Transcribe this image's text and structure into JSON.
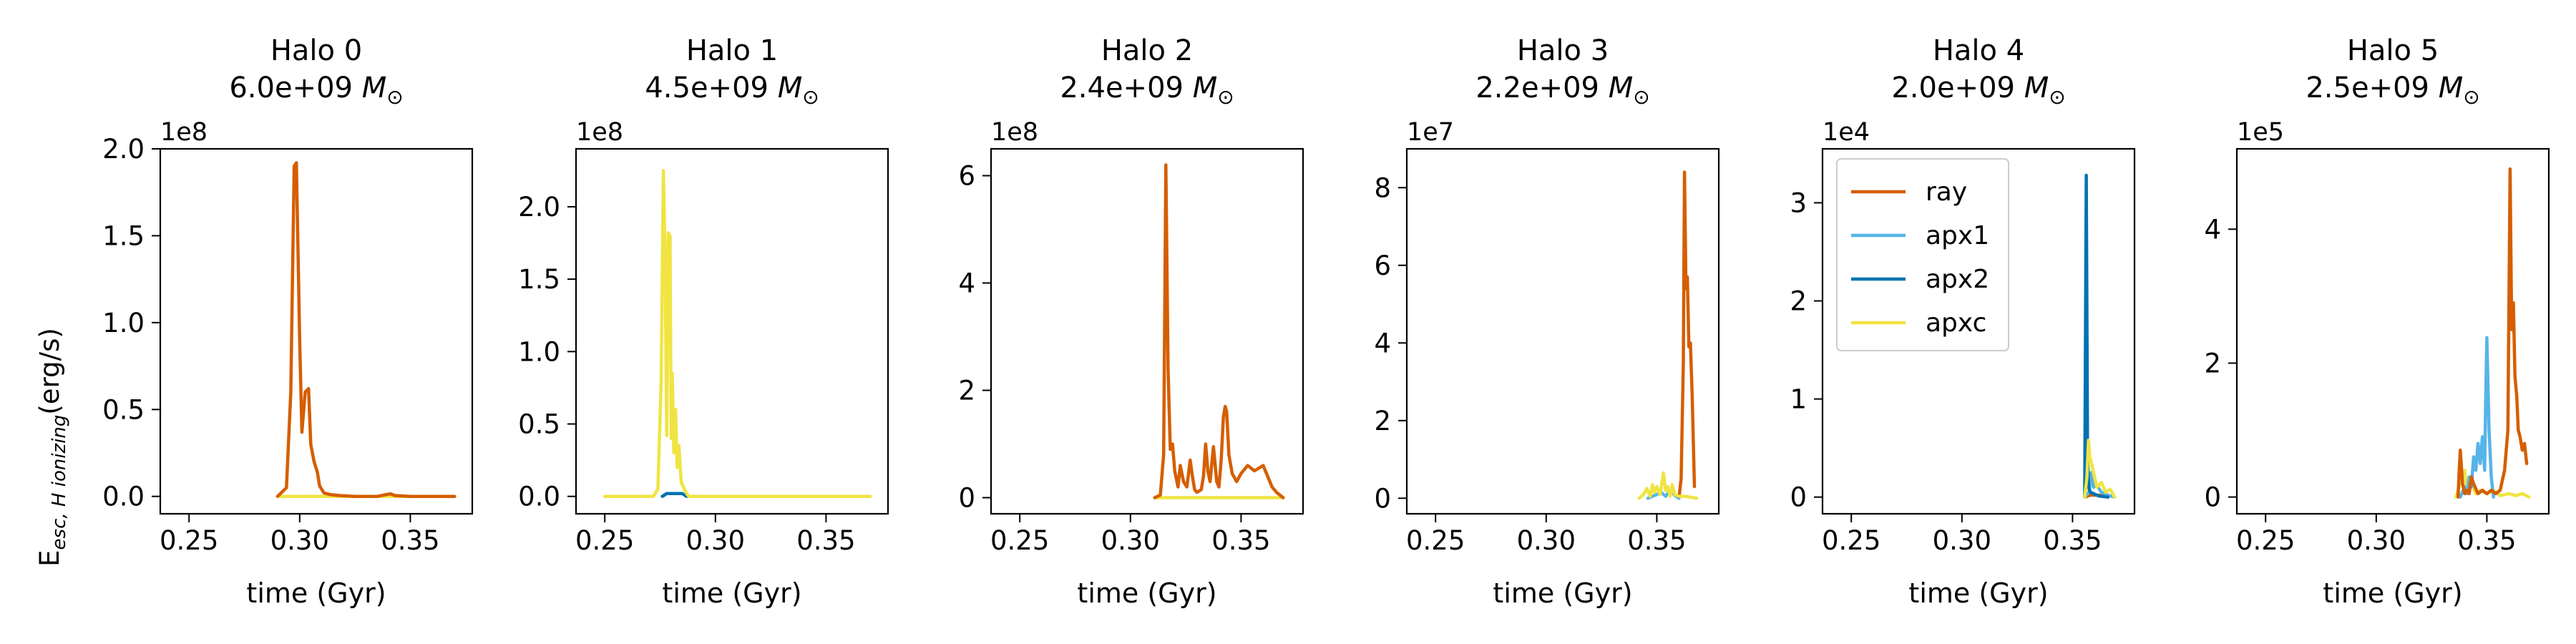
{
  "figure": {
    "ylabel_main": "E",
    "ylabel_sub": "esc, H ionizing",
    "ylabel_unit": "(erg/s)"
  },
  "colors": {
    "ray": "#d55e00",
    "apx1": "#56b4e9",
    "apx2": "#0072b2",
    "apxc": "#f0e442"
  },
  "legend": {
    "entries": [
      {
        "name": "ray",
        "color": "#d55e00"
      },
      {
        "name": "apx1",
        "color": "#56b4e9"
      },
      {
        "name": "apx2",
        "color": "#0072b2"
      },
      {
        "name": "apxc",
        "color": "#f0e442"
      }
    ],
    "placement": "upper-left of Halo 4 panel"
  },
  "chart_data": [
    {
      "type": "line",
      "title_line1": "Halo 0",
      "mass": "6.0e+09",
      "mass_unit": "M",
      "xlabel": "time (Gyr)",
      "xlim": [
        0.237,
        0.378
      ],
      "xticks": [
        0.25,
        0.3,
        0.35
      ],
      "xtick_labels": [
        "0.25",
        "0.30",
        "0.35"
      ],
      "ylim": [
        -0.1,
        2.0
      ],
      "yticks": [
        0.0,
        0.5,
        1.0,
        1.5,
        2.0
      ],
      "ytick_labels": [
        "0.0",
        "0.5",
        "1.0",
        "1.5",
        "2.0"
      ],
      "yscale_label": "1e8",
      "series": [
        {
          "name": "apxc",
          "x": [
            0.29,
            0.37
          ],
          "y": [
            0,
            0
          ]
        },
        {
          "name": "ray",
          "x": [
            0.29,
            0.294,
            0.296,
            0.2975,
            0.2985,
            0.3,
            0.301,
            0.3025,
            0.304,
            0.305,
            0.3065,
            0.308,
            0.309,
            0.311,
            0.314,
            0.318,
            0.325,
            0.335,
            0.341,
            0.343,
            0.35,
            0.36,
            0.37
          ],
          "y": [
            0,
            0.05,
            0.6,
            1.9,
            1.92,
            0.9,
            0.37,
            0.6,
            0.62,
            0.3,
            0.2,
            0.14,
            0.06,
            0.02,
            0.01,
            0.005,
            0,
            0,
            0.015,
            0.005,
            0,
            0,
            0
          ]
        }
      ]
    },
    {
      "type": "line",
      "title_line1": "Halo 1",
      "mass": "4.5e+09",
      "mass_unit": "M",
      "xlabel": "time (Gyr)",
      "xlim": [
        0.237,
        0.378
      ],
      "xticks": [
        0.25,
        0.3,
        0.35
      ],
      "xtick_labels": [
        "0.25",
        "0.30",
        "0.35"
      ],
      "ylim": [
        -0.12,
        2.4
      ],
      "yticks": [
        0.0,
        0.5,
        1.0,
        1.5,
        2.0
      ],
      "ytick_labels": [
        "0.0",
        "0.5",
        "1.0",
        "1.5",
        "2.0"
      ],
      "yscale_label": "1e8",
      "series": [
        {
          "name": "apx2",
          "x": [
            0.276,
            0.278,
            0.282,
            0.285,
            0.287
          ],
          "y": [
            0,
            0.02,
            0.02,
            0.02,
            0
          ]
        },
        {
          "name": "apxc",
          "x": [
            0.25,
            0.272,
            0.274,
            0.2755,
            0.2765,
            0.2772,
            0.278,
            0.2787,
            0.2795,
            0.28,
            0.2805,
            0.2812,
            0.282,
            0.2827,
            0.2835,
            0.2845,
            0.286,
            0.287,
            0.288,
            0.29,
            0.3,
            0.37
          ],
          "y": [
            0,
            0,
            0.05,
            0.8,
            2.25,
            1.7,
            0.42,
            1.82,
            1.8,
            0.4,
            0.85,
            0.3,
            0.6,
            0.2,
            0.35,
            0.1,
            0.05,
            0.02,
            0,
            0,
            0,
            0
          ]
        }
      ]
    },
    {
      "type": "line",
      "title_line1": "Halo 2",
      "mass": "2.4e+09",
      "mass_unit": "M",
      "xlabel": "time (Gyr)",
      "xlim": [
        0.237,
        0.378
      ],
      "xticks": [
        0.25,
        0.3,
        0.35
      ],
      "xtick_labels": [
        "0.25",
        "0.30",
        "0.35"
      ],
      "ylim": [
        -0.3,
        6.5
      ],
      "yticks": [
        0,
        2,
        4,
        6
      ],
      "ytick_labels": [
        "0",
        "2",
        "4",
        "6"
      ],
      "yscale_label": "1e8",
      "series": [
        {
          "name": "apxc",
          "x": [
            0.311,
            0.369
          ],
          "y": [
            0,
            0
          ]
        },
        {
          "name": "ray",
          "x": [
            0.311,
            0.3135,
            0.315,
            0.316,
            0.317,
            0.318,
            0.319,
            0.32,
            0.3215,
            0.3225,
            0.324,
            0.3255,
            0.327,
            0.328,
            0.329,
            0.33,
            0.332,
            0.333,
            0.334,
            0.335,
            0.336,
            0.3375,
            0.339,
            0.34,
            0.341,
            0.342,
            0.3428,
            0.3435,
            0.3445,
            0.346,
            0.348,
            0.35,
            0.353,
            0.356,
            0.36,
            0.362,
            0.364,
            0.366,
            0.369
          ],
          "y": [
            0,
            0.05,
            0.8,
            6.2,
            2.4,
            0.9,
            1.0,
            0.5,
            0.2,
            0.6,
            0.3,
            0.2,
            0.7,
            0.4,
            0.15,
            0.1,
            0.15,
            0.4,
            1.0,
            0.5,
            0.3,
            0.95,
            0.3,
            0.2,
            0.7,
            1.5,
            1.7,
            1.6,
            0.8,
            0.45,
            0.3,
            0.45,
            0.6,
            0.5,
            0.6,
            0.4,
            0.2,
            0.1,
            0
          ]
        }
      ]
    },
    {
      "type": "line",
      "title_line1": "Halo 3",
      "mass": "2.2e+09",
      "mass_unit": "M",
      "xlabel": "time (Gyr)",
      "xlim": [
        0.237,
        0.378
      ],
      "xticks": [
        0.25,
        0.3,
        0.35
      ],
      "xtick_labels": [
        "0.25",
        "0.30",
        "0.35"
      ],
      "ylim": [
        -0.4,
        9.0
      ],
      "yticks": [
        0,
        2,
        4,
        6,
        8
      ],
      "ytick_labels": [
        "0",
        "2",
        "4",
        "6",
        "8"
      ],
      "yscale_label": "1e7",
      "series": [
        {
          "name": "ray",
          "x": [
            0.36,
            0.361,
            0.362,
            0.3625,
            0.3632,
            0.3638,
            0.3645,
            0.3652,
            0.366,
            0.367
          ],
          "y": [
            0,
            0.5,
            3.5,
            8.4,
            5.4,
            5.7,
            3.9,
            4.0,
            2.6,
            0.3
          ]
        },
        {
          "name": "apx1",
          "x": [
            0.346,
            0.35,
            0.352,
            0.354,
            0.356,
            0.358,
            0.36
          ],
          "y": [
            0,
            0.1,
            0.15,
            0.05,
            0.2,
            0.08,
            0
          ]
        },
        {
          "name": "apxc",
          "x": [
            0.342,
            0.344,
            0.3455,
            0.347,
            0.348,
            0.349,
            0.35,
            0.3515,
            0.353,
            0.354,
            0.355,
            0.356,
            0.357,
            0.358,
            0.36,
            0.363,
            0.368
          ],
          "y": [
            0,
            0.1,
            0.25,
            0.05,
            0.35,
            0.15,
            0.3,
            0.1,
            0.65,
            0.2,
            0.3,
            0.05,
            0.35,
            0.1,
            0.05,
            0.05,
            0
          ]
        }
      ]
    },
    {
      "type": "line",
      "title_line1": "Halo 4",
      "mass": "2.0e+09",
      "mass_unit": "M",
      "xlabel": "time (Gyr)",
      "xlim": [
        0.237,
        0.378
      ],
      "xticks": [
        0.25,
        0.3,
        0.35
      ],
      "xtick_labels": [
        "0.25",
        "0.30",
        "0.35"
      ],
      "ylim": [
        -0.17,
        3.55
      ],
      "yticks": [
        0,
        1,
        2,
        3
      ],
      "ytick_labels": [
        "0",
        "1",
        "2",
        "3"
      ],
      "yscale_label": "1e4",
      "series": [
        {
          "name": "ray",
          "x": [
            0.3555,
            0.358,
            0.362,
            0.366
          ],
          "y": [
            0,
            0.02,
            0.02,
            0
          ]
        },
        {
          "name": "apx1",
          "x": [
            0.3555,
            0.3575,
            0.3585,
            0.3595,
            0.361,
            0.363,
            0.366,
            0.369
          ],
          "y": [
            0,
            0.05,
            0.25,
            0.1,
            0.12,
            0.05,
            0.02,
            0
          ]
        },
        {
          "name": "apx2",
          "x": [
            0.3555,
            0.3562,
            0.3568,
            0.3573,
            0.358,
            0.36,
            0.362,
            0.366
          ],
          "y": [
            0,
            3.28,
            0.4,
            0.1,
            0.05,
            0.03,
            0.01,
            0
          ]
        },
        {
          "name": "apxc",
          "x": [
            0.3555,
            0.3565,
            0.3572,
            0.3578,
            0.3585,
            0.3595,
            0.361,
            0.363,
            0.365,
            0.367,
            0.369
          ],
          "y": [
            0,
            0.2,
            0.58,
            0.4,
            0.35,
            0.25,
            0.1,
            0.15,
            0.05,
            0.08,
            0
          ]
        }
      ]
    },
    {
      "type": "line",
      "title_line1": "Halo 5",
      "mass": "2.5e+09",
      "mass_unit": "M",
      "xlabel": "time (Gyr)",
      "xlim": [
        0.237,
        0.378
      ],
      "xticks": [
        0.25,
        0.3,
        0.35
      ],
      "xtick_labels": [
        "0.25",
        "0.30",
        "0.35"
      ],
      "ylim": [
        -0.25,
        5.2
      ],
      "yticks": [
        0,
        2,
        4
      ],
      "ytick_labels": [
        "0",
        "2",
        "4"
      ],
      "yscale_label": "1e5",
      "series": [
        {
          "name": "apxc",
          "x": [
            0.336,
            0.338,
            0.34,
            0.341,
            0.343,
            0.345,
            0.347,
            0.35,
            0.353,
            0.356,
            0.36,
            0.363,
            0.366,
            0.369
          ],
          "y": [
            0,
            0.2,
            0.4,
            0.05,
            0.2,
            0.05,
            0.1,
            0.05,
            0.1,
            0.02,
            0.05,
            0.02,
            0.05,
            0
          ]
        },
        {
          "name": "apx1",
          "x": [
            0.338,
            0.34,
            0.341,
            0.342,
            0.343,
            0.344,
            0.345,
            0.346,
            0.347,
            0.348,
            0.349,
            0.3495,
            0.35,
            0.351,
            0.352,
            0.353
          ],
          "y": [
            0,
            0.15,
            0.05,
            0.3,
            0.15,
            0.6,
            0.4,
            0.8,
            0.5,
            0.9,
            0.4,
            1.5,
            2.38,
            1.0,
            0.3,
            0
          ]
        },
        {
          "name": "ray",
          "x": [
            0.337,
            0.3375,
            0.338,
            0.339,
            0.34,
            0.341,
            0.342,
            0.343,
            0.344,
            0.346,
            0.348,
            0.35,
            0.352,
            0.354,
            0.356,
            0.358,
            0.3595,
            0.3605,
            0.3612,
            0.362,
            0.3627,
            0.3635,
            0.3642,
            0.365,
            0.366,
            0.367,
            0.368
          ],
          "y": [
            0,
            0.4,
            0.7,
            0.2,
            0.05,
            0.1,
            0.05,
            0.3,
            0.2,
            0.05,
            0.1,
            0.05,
            0.1,
            0.05,
            0.1,
            0.4,
            1.0,
            4.9,
            2.5,
            2.9,
            1.8,
            1.5,
            1.0,
            0.9,
            0.7,
            0.8,
            0.5
          ]
        }
      ]
    }
  ]
}
